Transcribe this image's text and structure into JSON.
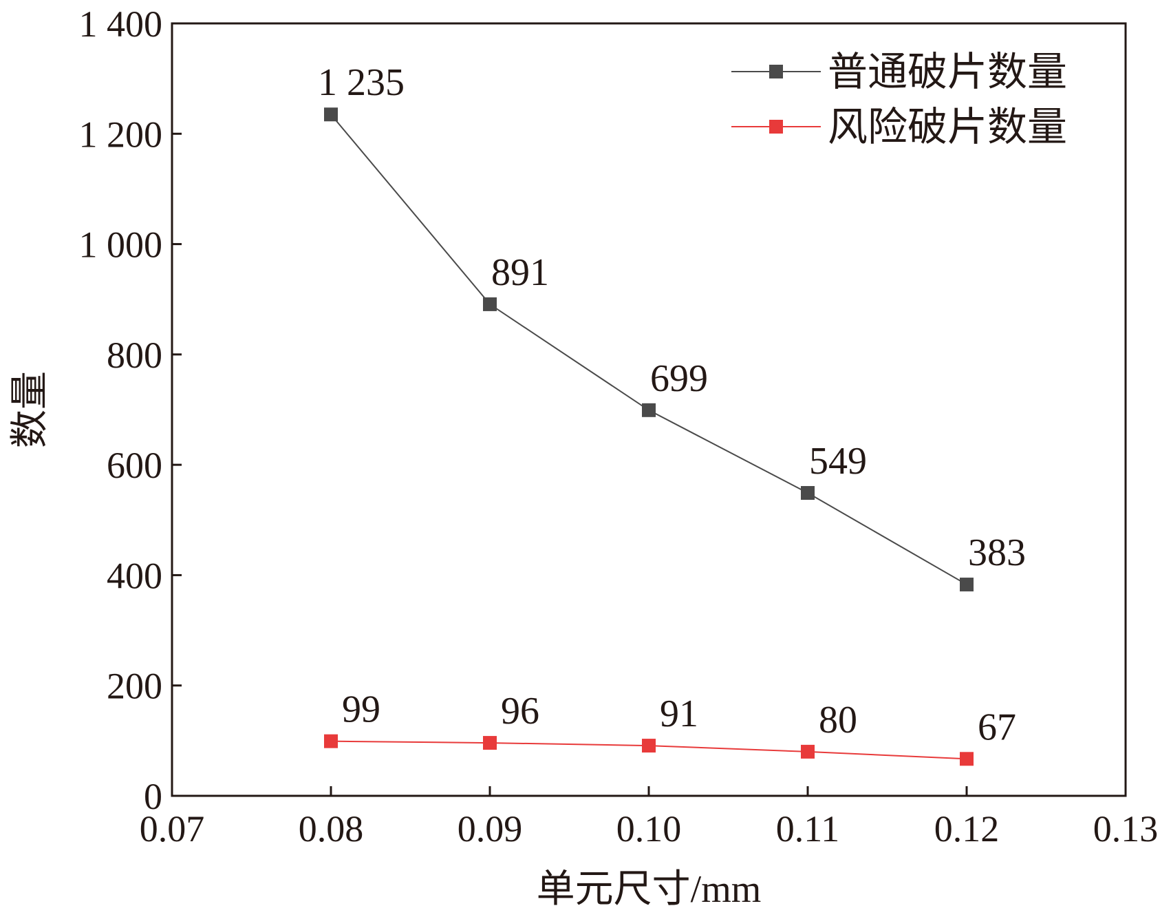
{
  "chart_data": {
    "type": "line",
    "title": "",
    "xlabel": "单元尺寸/mm",
    "ylabel": "数量",
    "x": [
      0.08,
      0.09,
      0.1,
      0.11,
      0.12
    ],
    "xlim": [
      0.07,
      0.13
    ],
    "ylim": [
      0,
      1400
    ],
    "x_ticks": [
      0.07,
      0.08,
      0.09,
      0.1,
      0.11,
      0.12,
      0.13
    ],
    "x_tick_labels": [
      "0.07",
      "0.08",
      "0.09",
      "0.10",
      "0.11",
      "0.12",
      "0.13"
    ],
    "y_ticks": [
      0,
      200,
      400,
      600,
      800,
      1000,
      1200,
      1400
    ],
    "y_tick_labels": [
      "0",
      "200",
      "400",
      "600",
      "800",
      "1 000",
      "1 200",
      "1 400"
    ],
    "grid": false,
    "legend_position": "top-right",
    "series": [
      {
        "name": "普通破片数量",
        "color": "#4a4a4a",
        "marker": "square",
        "values": [
          1235,
          891,
          699,
          549,
          383
        ],
        "labels": [
          "1 235",
          "891",
          "699",
          "549",
          "383"
        ]
      },
      {
        "name": "风险破片数量",
        "color": "#e83a3a",
        "marker": "square",
        "values": [
          99,
          96,
          91,
          80,
          67
        ],
        "labels": [
          "99",
          "96",
          "91",
          "80",
          "67"
        ]
      }
    ]
  }
}
